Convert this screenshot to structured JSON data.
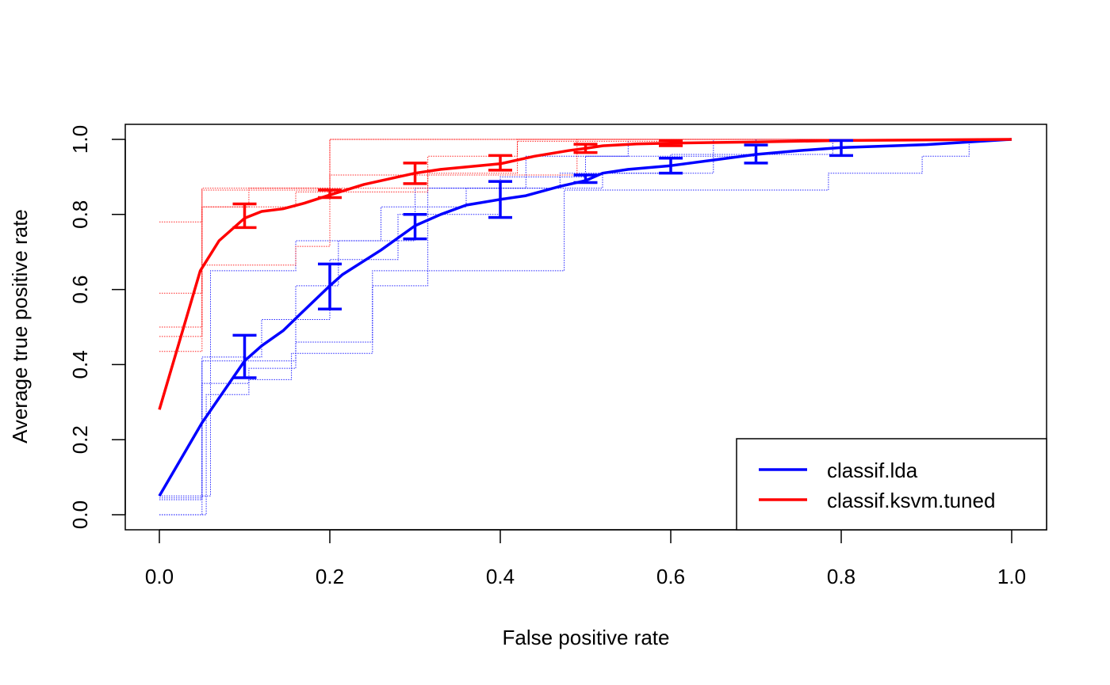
{
  "chart_data": {
    "type": "line",
    "title": "",
    "xlabel": "False positive rate",
    "ylabel": "Average true positive rate",
    "xlim": [
      0,
      1
    ],
    "ylim": [
      0,
      1
    ],
    "x_ticks": [
      "0.0",
      "0.2",
      "0.4",
      "0.6",
      "0.8",
      "1.0"
    ],
    "y_ticks": [
      "0.0",
      "0.2",
      "0.4",
      "0.6",
      "0.8",
      "1.0"
    ],
    "grid": false,
    "legend_position": "bottom-right",
    "series": [
      {
        "name": "classif.lda",
        "color": "#0000ff",
        "x": [
          0.0,
          0.05,
          0.1,
          0.12,
          0.145,
          0.17,
          0.2,
          0.215,
          0.26,
          0.3,
          0.33,
          0.36,
          0.4,
          0.43,
          0.47,
          0.5,
          0.52,
          0.55,
          0.6,
          0.65,
          0.7,
          0.75,
          0.8,
          0.9,
          1.0
        ],
        "y": [
          0.05,
          0.245,
          0.41,
          0.45,
          0.49,
          0.545,
          0.61,
          0.64,
          0.705,
          0.77,
          0.8,
          0.825,
          0.84,
          0.85,
          0.875,
          0.89,
          0.91,
          0.92,
          0.93,
          0.945,
          0.96,
          0.97,
          0.978,
          0.986,
          1.0
        ],
        "errorbars": [
          {
            "x": 0.1,
            "low": 0.365,
            "high": 0.478
          },
          {
            "x": 0.2,
            "low": 0.548,
            "high": 0.668
          },
          {
            "x": 0.3,
            "low": 0.735,
            "high": 0.8
          },
          {
            "x": 0.4,
            "low": 0.792,
            "high": 0.888
          },
          {
            "x": 0.5,
            "low": 0.885,
            "high": 0.905
          },
          {
            "x": 0.6,
            "low": 0.91,
            "high": 0.95
          },
          {
            "x": 0.7,
            "low": 0.937,
            "high": 0.985
          },
          {
            "x": 0.8,
            "low": 0.957,
            "high": 0.997
          }
        ],
        "fold_curves": [
          [
            [
              0,
              0
            ],
            [
              0.05,
              0
            ],
            [
              0.05,
              0.41
            ],
            [
              0.16,
              0.41
            ],
            [
              0.16,
              0.61
            ],
            [
              0.21,
              0.61
            ],
            [
              0.21,
              0.73
            ],
            [
              0.26,
              0.73
            ],
            [
              0.26,
              0.82
            ],
            [
              0.36,
              0.82
            ],
            [
              0.36,
              0.87
            ],
            [
              0.52,
              0.87
            ],
            [
              0.52,
              0.91
            ],
            [
              0.65,
              0.91
            ],
            [
              0.65,
              1.0
            ],
            [
              1.0,
              1.0
            ]
          ],
          [
            [
              0,
              0.045
            ],
            [
              0.05,
              0.045
            ],
            [
              0.05,
              0.35
            ],
            [
              0.105,
              0.35
            ],
            [
              0.105,
              0.39
            ],
            [
              0.16,
              0.39
            ],
            [
              0.16,
              0.46
            ],
            [
              0.25,
              0.46
            ],
            [
              0.25,
              0.61
            ],
            [
              0.315,
              0.61
            ],
            [
              0.315,
              0.87
            ],
            [
              0.47,
              0.87
            ],
            [
              0.47,
              0.91
            ],
            [
              0.6,
              0.91
            ],
            [
              0.6,
              0.96
            ],
            [
              0.79,
              0.96
            ],
            [
              0.79,
              1.0
            ],
            [
              1.0,
              1.0
            ]
          ],
          [
            [
              0,
              0
            ],
            [
              0.055,
              0
            ],
            [
              0.055,
              0.32
            ],
            [
              0.105,
              0.32
            ],
            [
              0.105,
              0.36
            ],
            [
              0.155,
              0.36
            ],
            [
              0.155,
              0.43
            ],
            [
              0.25,
              0.43
            ],
            [
              0.25,
              0.65
            ],
            [
              0.475,
              0.65
            ],
            [
              0.475,
              0.865
            ],
            [
              0.785,
              0.865
            ],
            [
              0.785,
              0.91
            ],
            [
              0.895,
              0.91
            ],
            [
              0.895,
              0.955
            ],
            [
              0.95,
              0.955
            ],
            [
              0.95,
              1.0
            ],
            [
              1.0,
              1.0
            ]
          ],
          [
            [
              0,
              0.05
            ],
            [
              0.06,
              0.05
            ],
            [
              0.06,
              0.65
            ],
            [
              0.16,
              0.65
            ],
            [
              0.16,
              0.73
            ],
            [
              0.3,
              0.73
            ],
            [
              0.3,
              0.87
            ],
            [
              0.43,
              0.87
            ],
            [
              0.43,
              0.955
            ],
            [
              0.55,
              0.955
            ],
            [
              0.55,
              1.0
            ],
            [
              1.0,
              1.0
            ]
          ],
          [
            [
              0,
              0.04
            ],
            [
              0.05,
              0.04
            ],
            [
              0.05,
              0.42
            ],
            [
              0.12,
              0.42
            ],
            [
              0.12,
              0.52
            ],
            [
              0.2,
              0.52
            ],
            [
              0.2,
              0.68
            ],
            [
              0.28,
              0.68
            ],
            [
              0.28,
              0.8
            ],
            [
              0.4,
              0.8
            ],
            [
              0.4,
              0.9
            ],
            [
              0.5,
              0.9
            ],
            [
              0.5,
              0.955
            ],
            [
              0.7,
              0.955
            ],
            [
              0.7,
              1.0
            ],
            [
              1.0,
              1.0
            ]
          ]
        ]
      },
      {
        "name": "classif.ksvm.tuned",
        "color": "#ff0000",
        "x": [
          0.0,
          0.048,
          0.07,
          0.1,
          0.12,
          0.145,
          0.17,
          0.2,
          0.24,
          0.3,
          0.33,
          0.4,
          0.44,
          0.48,
          0.5,
          0.52,
          0.56,
          0.6,
          0.7,
          0.8,
          1.0
        ],
        "y": [
          0.28,
          0.65,
          0.73,
          0.79,
          0.808,
          0.815,
          0.83,
          0.852,
          0.88,
          0.91,
          0.92,
          0.935,
          0.955,
          0.97,
          0.976,
          0.983,
          0.988,
          0.99,
          0.993,
          0.997,
          1.0
        ],
        "errorbars": [
          {
            "x": 0.1,
            "low": 0.765,
            "high": 0.828
          },
          {
            "x": 0.2,
            "low": 0.845,
            "high": 0.865
          },
          {
            "x": 0.3,
            "low": 0.882,
            "high": 0.937
          },
          {
            "x": 0.4,
            "low": 0.918,
            "high": 0.957
          },
          {
            "x": 0.5,
            "low": 0.965,
            "high": 0.987
          },
          {
            "x": 0.6,
            "low": 0.983,
            "high": 0.997
          }
        ],
        "fold_curves": [
          [
            [
              0,
              0.435
            ],
            [
              0.05,
              0.435
            ],
            [
              0.05,
              0.87
            ],
            [
              0.2,
              0.87
            ],
            [
              0.2,
              1.0
            ],
            [
              1.0,
              1.0
            ]
          ],
          [
            [
              0,
              0.5
            ],
            [
              0.05,
              0.5
            ],
            [
              0.05,
              0.82
            ],
            [
              0.105,
              0.82
            ],
            [
              0.105,
              0.87
            ],
            [
              0.2,
              0.87
            ],
            [
              0.2,
              1.0
            ],
            [
              1.0,
              1.0
            ]
          ],
          [
            [
              0,
              0.59
            ],
            [
              0.05,
              0.59
            ],
            [
              0.05,
              0.82
            ],
            [
              0.16,
              0.82
            ],
            [
              0.16,
              0.86
            ],
            [
              0.315,
              0.86
            ],
            [
              0.315,
              0.91
            ],
            [
              0.42,
              0.91
            ],
            [
              0.42,
              1.0
            ],
            [
              1.0,
              1.0
            ]
          ],
          [
            [
              0,
              0.78
            ],
            [
              0.05,
              0.78
            ],
            [
              0.05,
              0.865
            ],
            [
              0.2,
              0.865
            ],
            [
              0.2,
              0.905
            ],
            [
              0.49,
              0.905
            ],
            [
              0.49,
              1.0
            ],
            [
              1.0,
              1.0
            ]
          ],
          [
            [
              0,
              0.475
            ],
            [
              0.05,
              0.475
            ],
            [
              0.05,
              0.665
            ],
            [
              0.16,
              0.665
            ],
            [
              0.16,
              0.715
            ],
            [
              0.2,
              0.715
            ],
            [
              0.2,
              0.87
            ],
            [
              0.315,
              0.87
            ],
            [
              0.315,
              0.955
            ],
            [
              0.42,
              0.955
            ],
            [
              0.42,
              0.995
            ],
            [
              0.6,
              0.995
            ],
            [
              0.6,
              1.0
            ],
            [
              1.0,
              1.0
            ]
          ]
        ]
      }
    ]
  }
}
